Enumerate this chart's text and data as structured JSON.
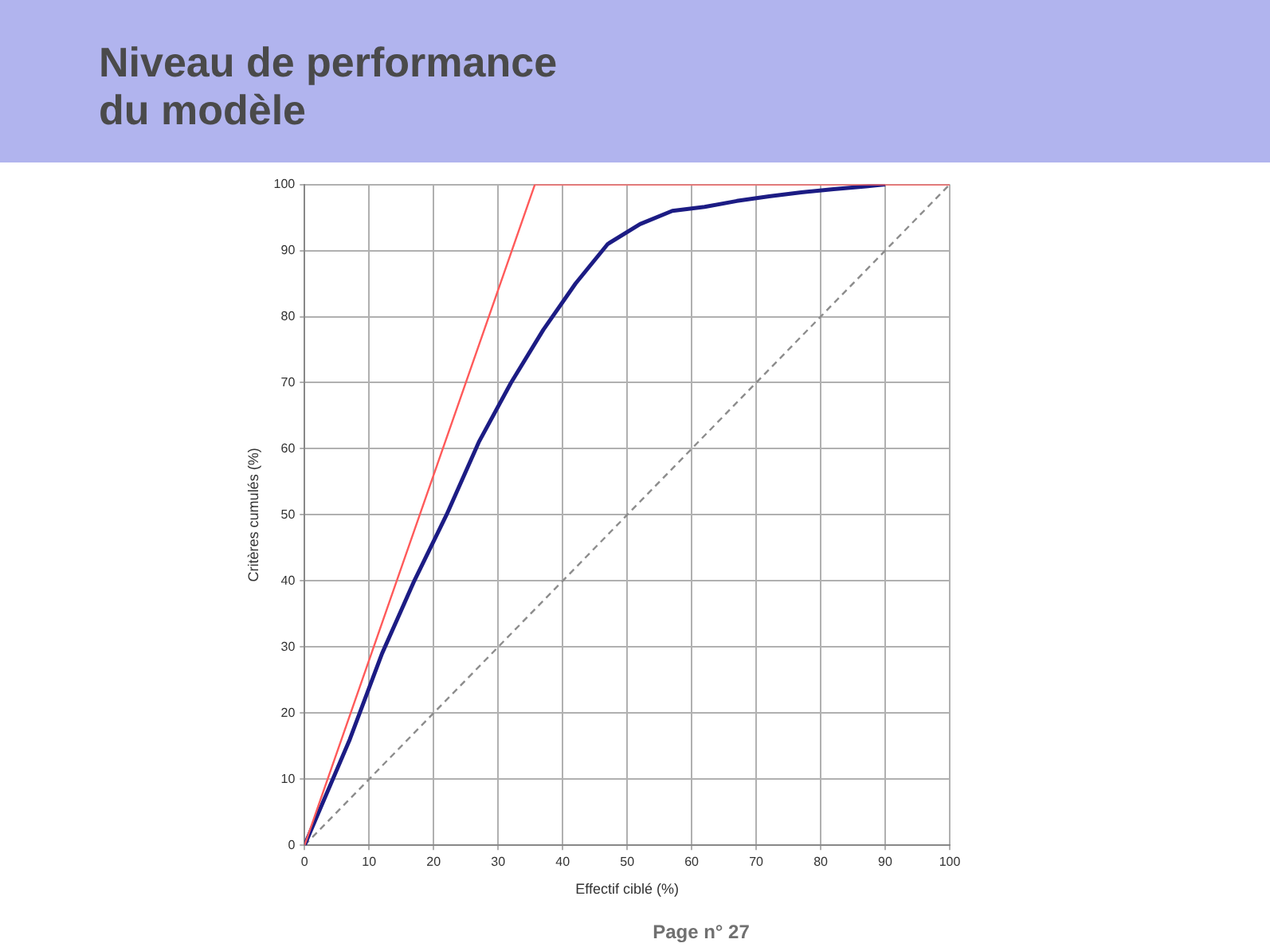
{
  "chart_data": {
    "type": "line",
    "title": "Niveau de performance\ndu modèle",
    "xlabel": "Effectif ciblé (%)",
    "ylabel": "Critères cumulés (%)",
    "xlim": [
      0,
      100
    ],
    "xticks": [
      0,
      10,
      20,
      30,
      40,
      50,
      60,
      70,
      80,
      90,
      100
    ],
    "ylim": [
      0,
      100
    ],
    "yticks": [
      0,
      10,
      20,
      30,
      40,
      50,
      60,
      70,
      80,
      90,
      100
    ],
    "grid": true,
    "legend": false,
    "marker": "none",
    "series": [
      {
        "color": "#ff5a5a",
        "line_style": "solid",
        "x": [
          0,
          35.7,
          100
        ],
        "values": [
          0,
          100,
          100
        ]
      },
      {
        "color": "#1c1c84",
        "line_style": "solid",
        "x": [
          0,
          7,
          12,
          17,
          22,
          27,
          32,
          37,
          42,
          47,
          52,
          57,
          62,
          67,
          72,
          77,
          82,
          87,
          90
        ],
        "values": [
          0,
          16,
          29,
          40,
          50,
          61,
          70,
          78,
          85,
          91,
          94,
          96,
          96.6,
          97.5,
          98.2,
          98.8,
          99.3,
          99.7,
          100
        ]
      },
      {
        "color": "#8c8c8c",
        "line_style": "dashed",
        "x": [
          0,
          100
        ],
        "values": [
          0,
          100
        ]
      }
    ],
    "annotations": [
      "Page n° 27"
    ]
  }
}
